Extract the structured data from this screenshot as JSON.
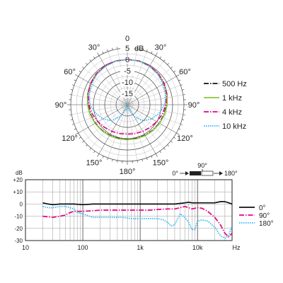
{
  "chart_data": [
    {
      "type": "polar-line",
      "radial_label": "dB",
      "radial_ticks": [
        5,
        0,
        -5,
        -10,
        -15
      ],
      "rlim": [
        -20,
        5
      ],
      "grid": true,
      "angle_ticks": [
        {
          "deg": 0,
          "label": "0"
        },
        {
          "deg": 30,
          "label": "30°"
        },
        {
          "deg": 60,
          "label": "60°"
        },
        {
          "deg": 90,
          "label": "90°"
        },
        {
          "deg": 120,
          "label": "120°"
        },
        {
          "deg": 150,
          "label": "150°"
        },
        {
          "deg": 180,
          "label": "180°"
        },
        {
          "deg": 210,
          "label": "150°"
        },
        {
          "deg": 240,
          "label": "120°"
        },
        {
          "deg": 270,
          "label": "90°"
        },
        {
          "deg": 300,
          "label": "60°"
        },
        {
          "deg": 330,
          "label": "30°"
        }
      ],
      "legend_position": "right",
      "series": [
        {
          "name": "500 Hz",
          "color": "#111111",
          "dash": "dashdot",
          "angles": [
            0,
            15,
            30,
            45,
            60,
            75,
            90,
            105,
            120,
            135,
            150,
            165,
            180,
            195,
            210,
            225,
            240,
            255,
            270,
            285,
            300,
            315,
            330,
            345
          ],
          "values": [
            0,
            0,
            -0.3,
            -0.7,
            -1.3,
            -1.9,
            -2.6,
            -3.2,
            -3.7,
            -4.1,
            -4.4,
            -4.6,
            -4.7,
            -4.6,
            -4.4,
            -4.1,
            -3.7,
            -3.2,
            -2.6,
            -1.9,
            -1.3,
            -0.7,
            -0.3,
            0
          ]
        },
        {
          "name": "1 kHz",
          "color": "#8cc63f",
          "dash": "solid",
          "angles": [
            0,
            15,
            30,
            45,
            60,
            75,
            90,
            105,
            120,
            135,
            150,
            165,
            180,
            195,
            210,
            225,
            240,
            255,
            270,
            285,
            300,
            315,
            330,
            345
          ],
          "values": [
            0,
            0,
            -0.3,
            -0.7,
            -1.2,
            -1.8,
            -2.4,
            -3.0,
            -3.5,
            -3.9,
            -4.2,
            -4.4,
            -4.5,
            -4.4,
            -4.2,
            -3.9,
            -3.5,
            -3.0,
            -2.4,
            -1.8,
            -1.2,
            -0.7,
            -0.3,
            0
          ]
        },
        {
          "name": "4 kHz",
          "color": "#e6007e",
          "dash": "dashdot",
          "angles": [
            0,
            15,
            30,
            45,
            60,
            75,
            90,
            105,
            120,
            135,
            150,
            165,
            180,
            195,
            210,
            225,
            240,
            255,
            270,
            285,
            300,
            315,
            330,
            345
          ],
          "values": [
            0,
            0,
            -0.2,
            -0.6,
            -1.2,
            -2.0,
            -3.0,
            -4.0,
            -5.0,
            -5.8,
            -6.4,
            -6.8,
            -7.0,
            -6.8,
            -6.4,
            -5.8,
            -5.0,
            -4.0,
            -3.0,
            -2.0,
            -1.2,
            -0.6,
            -0.2,
            0
          ]
        },
        {
          "name": "10 kHz",
          "color": "#29b6f6",
          "dash": "dotted",
          "angles": [
            0,
            15,
            30,
            45,
            60,
            75,
            90,
            105,
            120,
            135,
            150,
            165,
            180,
            195,
            210,
            225,
            240,
            255,
            270,
            285,
            300,
            315,
            330,
            345
          ],
          "values": [
            0,
            0,
            -0.4,
            -1.0,
            -1.8,
            -2.6,
            -3.5,
            -5.5,
            -7.5,
            -10.0,
            -14.0,
            -18.0,
            -20.0,
            -18.0,
            -14.0,
            -10.0,
            -7.5,
            -5.5,
            -3.5,
            -2.6,
            -1.8,
            -1.0,
            -0.4,
            0
          ]
        }
      ]
    },
    {
      "type": "line",
      "xscale": "log",
      "xlim": [
        10,
        40000
      ],
      "ylim": [
        -30,
        20
      ],
      "ylabel": "dB",
      "xlabel": "Hz",
      "yticks": [
        "+20",
        "+10",
        "0",
        "-10",
        "-20",
        "-30"
      ],
      "xticks": [
        "10",
        "100",
        "1k",
        "10k"
      ],
      "grid": true,
      "legend_position": "right",
      "angle_indicator": {
        "top_label": "90°",
        "left_label": "0°",
        "right_label": "180°"
      },
      "series": [
        {
          "name": "0°",
          "color": "#111111",
          "dash": "solid",
          "x": [
            20,
            25,
            30,
            40,
            50,
            70,
            100,
            150,
            200,
            300,
            500,
            700,
            1000,
            1500,
            2000,
            3000,
            4000,
            5000,
            6000,
            7000,
            8000,
            10000,
            12000,
            15000,
            20000,
            25000,
            30000,
            35000,
            40000
          ],
          "y": [
            1,
            0,
            -0.5,
            0,
            0,
            0,
            -0.5,
            0,
            0,
            0,
            0,
            0,
            0,
            0,
            0,
            0,
            0,
            0.5,
            1,
            1.5,
            1,
            1,
            1,
            1,
            1,
            2,
            2,
            1,
            0
          ]
        },
        {
          "name": "90°",
          "color": "#e6007e",
          "dash": "dashdot",
          "x": [
            20,
            30,
            40,
            50,
            60,
            70,
            100,
            150,
            200,
            300,
            500,
            700,
            1000,
            1500,
            2000,
            3000,
            4000,
            5000,
            6000,
            7000,
            8000,
            10000,
            12000,
            15000,
            20000,
            25000,
            30000,
            35000,
            40000
          ],
          "y": [
            -10,
            -11,
            -10,
            -9,
            -7,
            -6,
            -6,
            -5.5,
            -5,
            -5,
            -5,
            -5,
            -5,
            -5,
            -4.5,
            -4,
            -4,
            -3,
            -2,
            -3,
            -4,
            -3,
            -3.5,
            -6,
            -11,
            -17,
            -24,
            -27,
            -24
          ]
        },
        {
          "name": "180°",
          "color": "#29b6f6",
          "dash": "dotted",
          "x": [
            20,
            25,
            30,
            40,
            50,
            60,
            70,
            80,
            100,
            150,
            200,
            300,
            500,
            700,
            1000,
            1500,
            2000,
            2500,
            3000,
            3500,
            4000,
            5000,
            6000,
            7000,
            8000,
            9000,
            10000,
            12000,
            15000,
            20000,
            25000,
            30000,
            35000,
            40000
          ],
          "y": [
            -2,
            -3,
            -3,
            -2,
            -2,
            -3,
            -4,
            -7,
            -8,
            -11,
            -11,
            -11,
            -11,
            -12,
            -12,
            -12,
            -12,
            -13,
            -15,
            -18,
            -17,
            -8,
            -11,
            -15,
            -21,
            -21,
            -14,
            -13,
            -14,
            -19,
            -26,
            -28,
            -26,
            -18
          ]
        }
      ]
    }
  ]
}
